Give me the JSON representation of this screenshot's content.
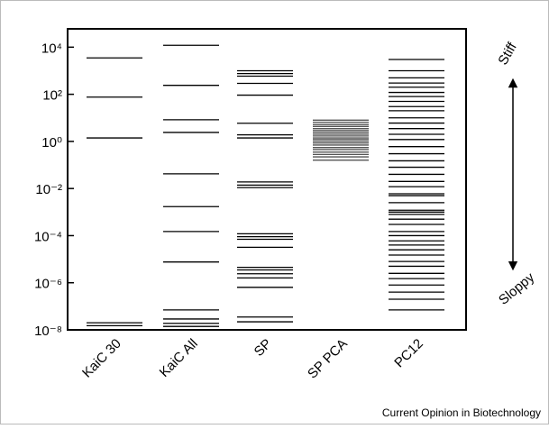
{
  "chart_data": {
    "type": "spectrum",
    "log_y": true,
    "color": "#000000",
    "ylim": [
      1e-08,
      60000
    ],
    "yticks": [
      {
        "value": 10000,
        "label": "10⁴"
      },
      {
        "value": 100,
        "label": "10²"
      },
      {
        "value": 1,
        "label": "10⁰"
      },
      {
        "value": 0.01,
        "label": "10⁻²"
      },
      {
        "value": 0.0001,
        "label": "10⁻⁴"
      },
      {
        "value": 1e-06,
        "label": "10⁻⁶"
      },
      {
        "value": 1e-08,
        "label": "10⁻⁸"
      }
    ],
    "series": [
      {
        "name": "KaiC 30",
        "values": [
          3500,
          76,
          1.4,
          2e-08,
          1.5e-08
        ]
      },
      {
        "name": "KaiC All",
        "values": [
          12000,
          240,
          8.3,
          2.4,
          0.042,
          0.0017,
          0.00015,
          7.6e-06,
          7e-08,
          2.9e-08,
          1.9e-08,
          1.4e-08
        ]
      },
      {
        "name": "SP",
        "values": [
          1000,
          760,
          590,
          290,
          92,
          5.9,
          1.9,
          1.4,
          0.019,
          0.014,
          0.011,
          0.00012,
          9e-05,
          7e-05,
          3.2e-05,
          4.5e-06,
          3.5e-06,
          2.4e-06,
          1.6e-06,
          6.4e-07,
          3.5e-08,
          2.2e-08
        ]
      },
      {
        "name": "SP PCA",
        "values": [
          8,
          6.5,
          5.2,
          4.3,
          3.5,
          2.9,
          2.4,
          2,
          1.7,
          1.4,
          1.2,
          1,
          0.85,
          0.7,
          0.55,
          0.45,
          0.35,
          0.28,
          0.22,
          0.16
        ]
      },
      {
        "name": "PC12",
        "values": [
          3000,
          1000,
          500,
          300,
          200,
          120,
          80,
          50,
          30,
          20,
          10,
          6,
          3.5,
          2,
          1.2,
          0.6,
          0.3,
          0.15,
          0.08,
          0.04,
          0.02,
          0.012,
          0.006,
          0.005,
          0.0025,
          0.0012,
          0.001,
          0.0008,
          0.0005,
          0.0003,
          0.00015,
          0.0001,
          6e-05,
          4e-05,
          2.5e-05,
          1.5e-05,
          8e-06,
          5e-06,
          2.5e-06,
          1.5e-06,
          8e-07,
          4e-07,
          2e-07,
          7e-08
        ]
      }
    ],
    "annotations": {
      "top": "Stiff",
      "bottom": "Sloppy"
    },
    "source": "Current Opinion in Biotechnology"
  }
}
